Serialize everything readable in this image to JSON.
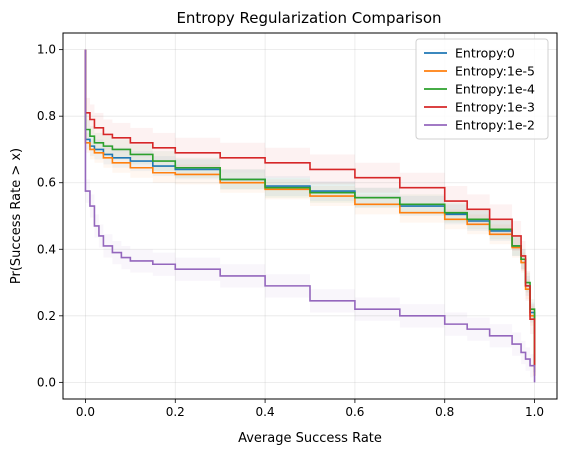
{
  "chart_data": {
    "type": "line",
    "title": "Entropy Regularization Comparison",
    "xlabel": "Average Success Rate",
    "ylabel": "Pr(Success Rate > x)",
    "xlim": [
      -0.05,
      1.05
    ],
    "ylim": [
      -0.05,
      1.05
    ],
    "xticks": [
      0.0,
      0.2,
      0.4,
      0.6,
      0.8,
      1.0
    ],
    "yticks": [
      0.0,
      0.2,
      0.4,
      0.6,
      0.8,
      1.0
    ],
    "tick_labels_x": [
      "0.0",
      "0.2",
      "0.4",
      "0.6",
      "0.8",
      "1.0"
    ],
    "tick_labels_y": [
      "0.0",
      "0.2",
      "0.4",
      "0.6",
      "0.8",
      "1.0"
    ],
    "grid": true,
    "legend_position": "top-right",
    "step": true,
    "series": [
      {
        "name": "Entropy:0",
        "color": "#1f77b4",
        "band": 0.03,
        "x": [
          0.0,
          0.0,
          0.01,
          0.02,
          0.04,
          0.06,
          0.1,
          0.15,
          0.2,
          0.3,
          0.4,
          0.5,
          0.6,
          0.7,
          0.8,
          0.85,
          0.9,
          0.95,
          0.97,
          0.98,
          0.99,
          1.0
        ],
        "y": [
          1.0,
          0.73,
          0.71,
          0.7,
          0.685,
          0.675,
          0.665,
          0.65,
          0.64,
          0.61,
          0.59,
          0.575,
          0.555,
          0.53,
          0.505,
          0.485,
          0.455,
          0.41,
          0.37,
          0.29,
          0.21,
          0.03
        ]
      },
      {
        "name": "Entropy:1e-5",
        "color": "#ff7f0e",
        "band": 0.03,
        "x": [
          0.0,
          0.0,
          0.01,
          0.02,
          0.04,
          0.06,
          0.1,
          0.15,
          0.2,
          0.3,
          0.4,
          0.5,
          0.6,
          0.7,
          0.8,
          0.85,
          0.9,
          0.95,
          0.97,
          0.98,
          0.99,
          1.0
        ],
        "y": [
          1.0,
          0.72,
          0.7,
          0.69,
          0.675,
          0.66,
          0.645,
          0.63,
          0.625,
          0.6,
          0.58,
          0.56,
          0.535,
          0.51,
          0.49,
          0.475,
          0.445,
          0.405,
          0.36,
          0.28,
          0.2,
          0.02
        ]
      },
      {
        "name": "Entropy:1e-4",
        "color": "#2ca02c",
        "band": 0.03,
        "x": [
          0.0,
          0.0,
          0.01,
          0.02,
          0.04,
          0.06,
          0.1,
          0.15,
          0.2,
          0.3,
          0.4,
          0.5,
          0.6,
          0.7,
          0.8,
          0.85,
          0.9,
          0.95,
          0.97,
          0.98,
          0.99,
          1.0
        ],
        "y": [
          1.0,
          0.76,
          0.74,
          0.72,
          0.71,
          0.7,
          0.685,
          0.665,
          0.645,
          0.61,
          0.585,
          0.57,
          0.555,
          0.535,
          0.51,
          0.49,
          0.46,
          0.41,
          0.37,
          0.3,
          0.22,
          0.05
        ]
      },
      {
        "name": "Entropy:1e-3",
        "color": "#d62728",
        "band": 0.045,
        "x": [
          0.0,
          0.0,
          0.01,
          0.02,
          0.04,
          0.06,
          0.1,
          0.15,
          0.2,
          0.3,
          0.4,
          0.5,
          0.6,
          0.7,
          0.8,
          0.85,
          0.9,
          0.95,
          0.97,
          0.98,
          0.99,
          1.0
        ],
        "y": [
          1.0,
          0.81,
          0.79,
          0.765,
          0.745,
          0.735,
          0.72,
          0.705,
          0.69,
          0.675,
          0.66,
          0.64,
          0.615,
          0.585,
          0.545,
          0.52,
          0.49,
          0.44,
          0.38,
          0.29,
          0.19,
          0.05
        ]
      },
      {
        "name": "Entropy:1e-2",
        "color": "#9467bd",
        "band": 0.035,
        "x": [
          0.0,
          0.0,
          0.01,
          0.02,
          0.03,
          0.04,
          0.06,
          0.08,
          0.1,
          0.15,
          0.2,
          0.3,
          0.4,
          0.5,
          0.6,
          0.7,
          0.8,
          0.85,
          0.9,
          0.95,
          0.97,
          0.98,
          0.99,
          1.0
        ],
        "y": [
          1.0,
          0.575,
          0.53,
          0.47,
          0.44,
          0.41,
          0.39,
          0.375,
          0.365,
          0.355,
          0.34,
          0.32,
          0.29,
          0.245,
          0.22,
          0.2,
          0.175,
          0.16,
          0.14,
          0.115,
          0.09,
          0.07,
          0.05,
          0.0
        ]
      }
    ]
  }
}
